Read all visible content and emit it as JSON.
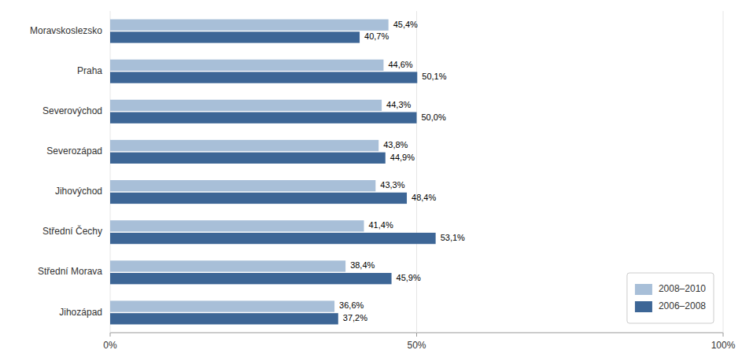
{
  "chart_data": {
    "type": "bar",
    "orientation": "horizontal",
    "categories": [
      "Moravskoslezsko",
      "Praha",
      "Severovýchod",
      "Severozápad",
      "Jihovýchod",
      "Střední Čechy",
      "Střední Morava",
      "Jihozápad"
    ],
    "series": [
      {
        "name": "2008–2010",
        "color": "#a8bfd8",
        "values": [
          45.4,
          44.6,
          44.3,
          43.8,
          43.3,
          41.4,
          38.4,
          36.6
        ],
        "value_labels": [
          "45,4%",
          "44,6%",
          "44,3%",
          "43,8%",
          "43,3%",
          "41,4%",
          "38,4%",
          "36,6%"
        ]
      },
      {
        "name": "2006–2008",
        "color": "#3d6696",
        "values": [
          40.7,
          50.1,
          50.0,
          44.9,
          48.4,
          53.1,
          45.9,
          37.2
        ],
        "value_labels": [
          "40,7%",
          "50,1%",
          "50,0%",
          "44,9%",
          "48,4%",
          "53,1%",
          "45,9%",
          "37,2%"
        ]
      }
    ],
    "xlim": [
      0,
      100
    ],
    "xticks": [
      {
        "value": 0,
        "label": "0%"
      },
      {
        "value": 50,
        "label": "50%"
      },
      {
        "value": 100,
        "label": "100%"
      }
    ],
    "data_labels": true,
    "legend": "lower right"
  }
}
